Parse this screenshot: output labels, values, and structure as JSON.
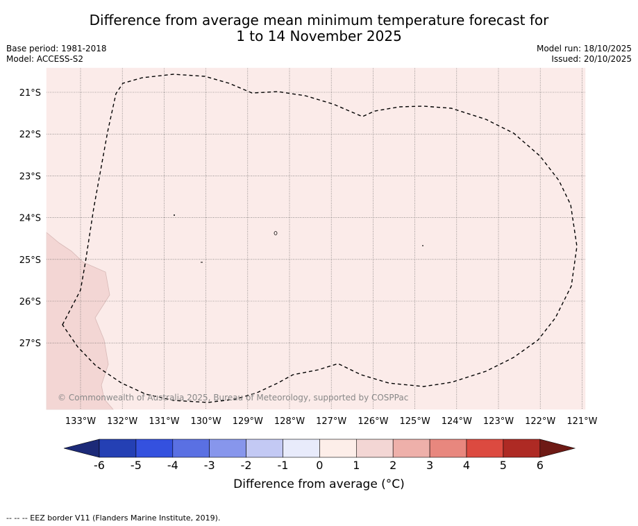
{
  "title": {
    "line1": "Difference from average mean minimum temperature forecast for",
    "line2": "1 to 14 November 2025"
  },
  "meta": {
    "base_period": "Base period: 1981-2018",
    "model": "Model: ACCESS-S2",
    "model_run": "Model run: 18/10/2025",
    "issued": "Issued: 20/10/2025"
  },
  "map": {
    "lat_labels": [
      "21°S",
      "22°S",
      "23°S",
      "24°S",
      "25°S",
      "26°S",
      "27°S"
    ],
    "lon_labels": [
      "133°W",
      "132°W",
      "131°W",
      "130°W",
      "129°W",
      "128°W",
      "127°W",
      "126°W",
      "125°W",
      "124°W",
      "123°W",
      "122°W",
      "121°W"
    ],
    "copyright": "© Commonwealth of Australia 2025, Bureau of Meteorology, supported by COSPPac",
    "colors": {
      "background_anomaly": "#fbebe9",
      "anomaly_1_2": "#f3d6d4"
    }
  },
  "colorbar": {
    "ticks": [
      "-6",
      "-5",
      "-4",
      "-3",
      "-2",
      "-1",
      "0",
      "1",
      "2",
      "3",
      "4",
      "5",
      "6"
    ],
    "colors": [
      "#1c2a78",
      "#2440b4",
      "#3451df",
      "#5a70e3",
      "#8796ec",
      "#c3c9f4",
      "#e8ebfb",
      "#fdeee9",
      "#f3d6d4",
      "#eeb0aa",
      "#e8877e",
      "#dc4a40",
      "#ae2a24",
      "#6e1a15"
    ],
    "label": "Difference from average (°C)"
  },
  "footnote": "--  --  -- EEZ border V11 (Flanders Marine Institute, 2019)."
}
